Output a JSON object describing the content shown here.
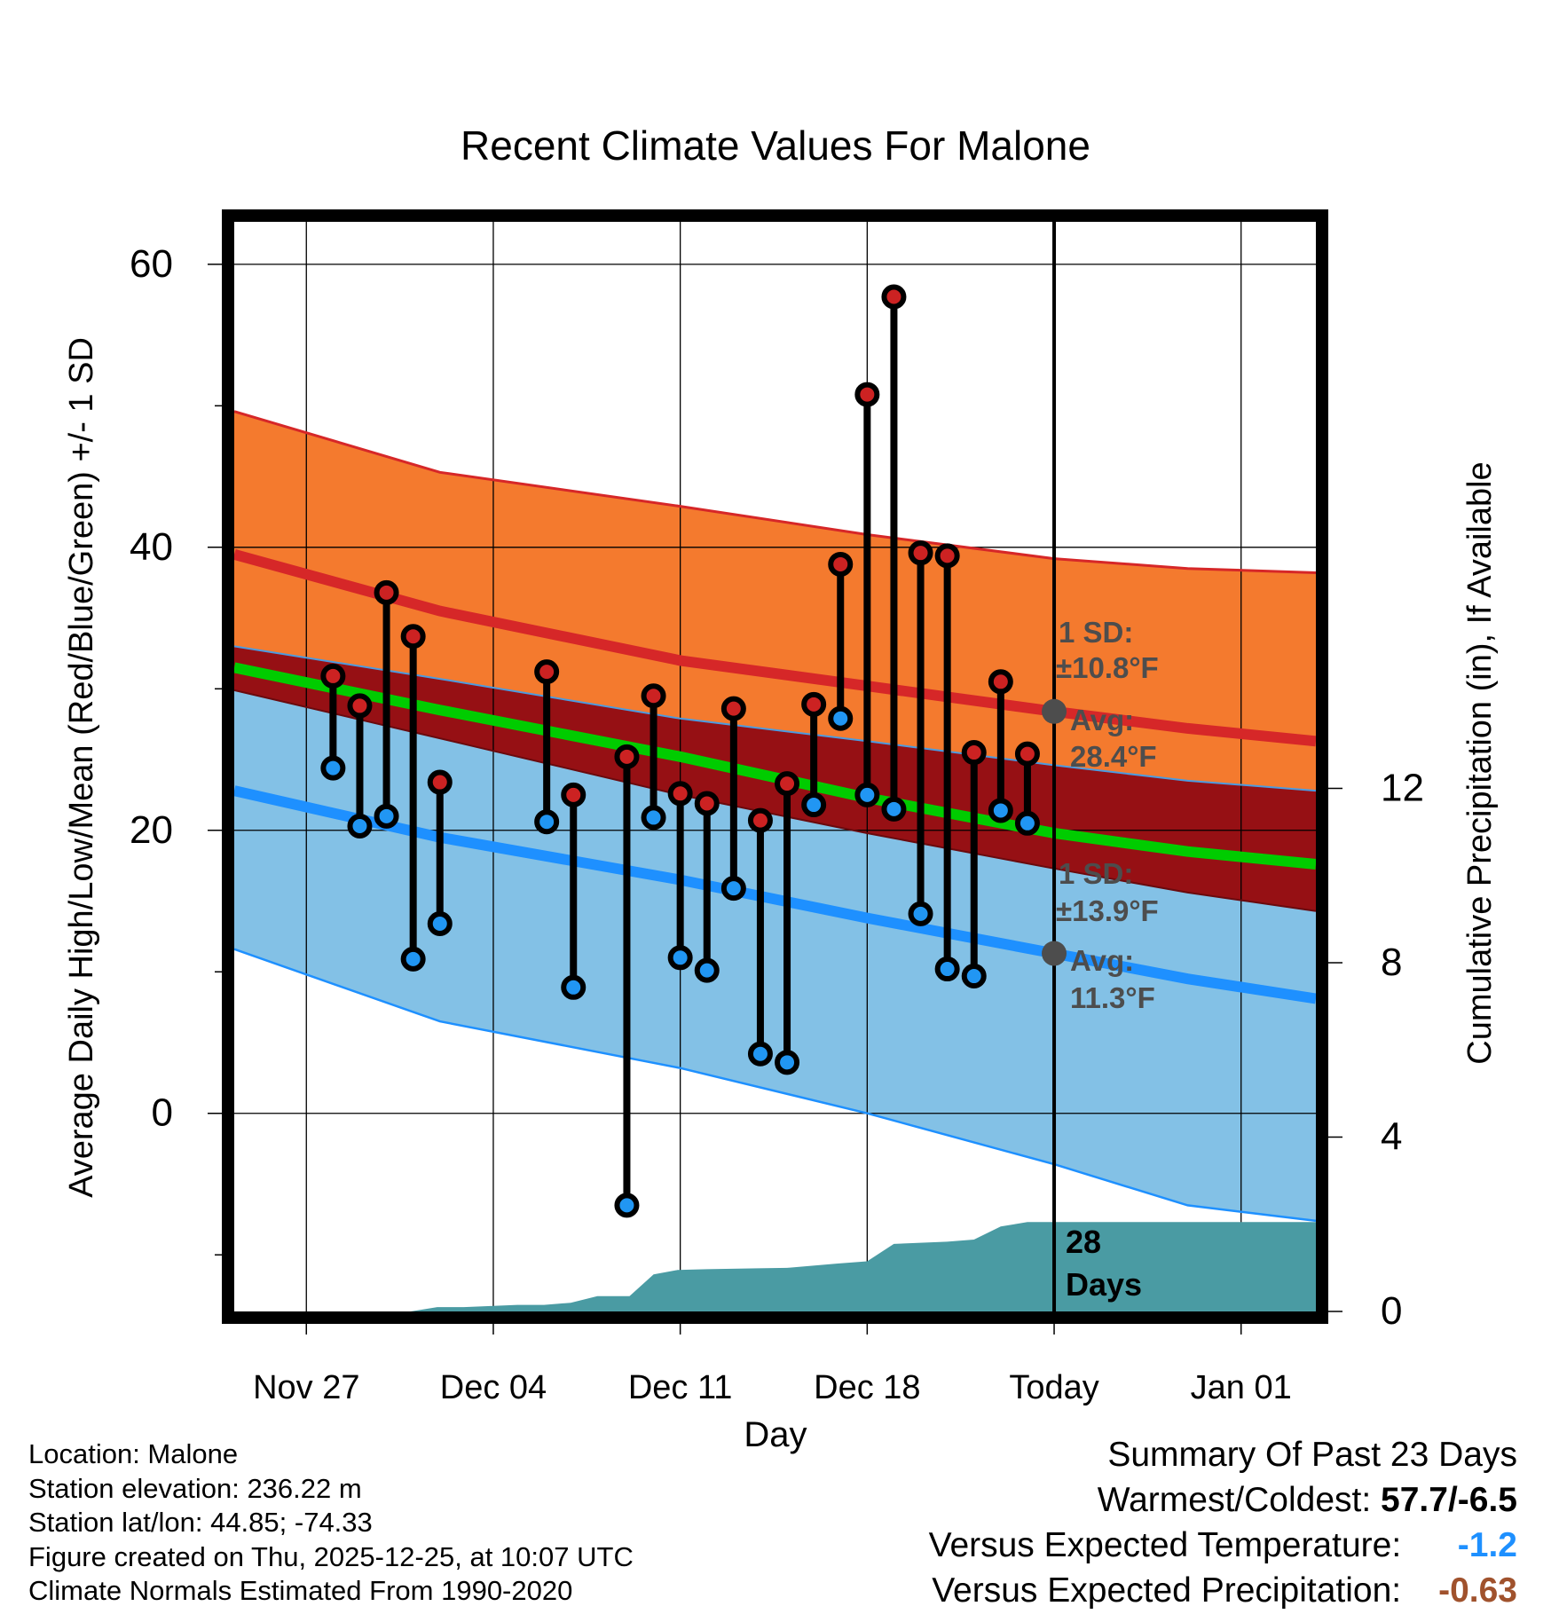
{
  "chart_data": {
    "type": "line",
    "title": "Recent Climate Values For Malone",
    "xlabel": "Day",
    "ylabel": "Average Daily High/Low/Mean (Red/Blue/Green) +/- 1 SD",
    "y2label": "Cumulative Precipitation (in), If Available",
    "x_tick_labels": [
      "Nov 27",
      "Dec 04",
      "Dec 11",
      "Dec 18",
      "Today",
      "Jan 01"
    ],
    "x_tick_days": [
      0,
      7,
      14,
      21,
      28,
      35
    ],
    "xlim": [
      -2.7,
      37.8
    ],
    "y_ticks": [
      0,
      20,
      40,
      60
    ],
    "ylim": [
      -14,
      63
    ],
    "y2_ticks": [
      0,
      4,
      8,
      12
    ],
    "y2lim": [
      0,
      25
    ],
    "normals": {
      "days": [
        -2.7,
        5,
        14,
        21,
        28,
        33,
        37.8
      ],
      "high_avg": [
        39.5,
        35.5,
        32,
        30.2,
        28.4,
        27.2,
        26.3
      ],
      "high_upper": [
        49.6,
        45.3,
        42.9,
        40.9,
        39.2,
        38.5,
        38.2
      ],
      "high_lower": [
        33.0,
        30.7,
        27.9,
        26.3,
        24.6,
        23.5,
        22.8
      ],
      "mean_avg": [
        31.5,
        28.5,
        25.2,
        22.3,
        19.8,
        18.5,
        17.6
      ],
      "low_avg": [
        22.8,
        19.5,
        16.5,
        13.8,
        11.3,
        9.5,
        8.1
      ],
      "low_upper": [
        29.9,
        26.5,
        22.5,
        19.8,
        17.3,
        15.6,
        14.3
      ],
      "low_lower": [
        11.6,
        6.5,
        3.2,
        0.0,
        -3.6,
        -6.5,
        -7.6
      ]
    },
    "high_annotation": {
      "sd_label": "1 SD:",
      "sd_value": "±10.8°F",
      "avg_label": "Avg:",
      "avg_value": "28.4°F",
      "avg": 28.4
    },
    "low_annotation": {
      "sd_label": "1 SD:",
      "sd_value": "±13.9°F",
      "avg_label": "Avg:",
      "avg_value": "11.3°F",
      "avg": 11.3
    },
    "observations": {
      "days": [
        1,
        2,
        3,
        4,
        5,
        9,
        10,
        12,
        13,
        14,
        15,
        16,
        17,
        18,
        19,
        20,
        21,
        22,
        23,
        24,
        25,
        26,
        27
      ],
      "high": [
        30.9,
        28.8,
        36.8,
        33.7,
        23.4,
        31.2,
        22.5,
        25.2,
        29.5,
        22.6,
        21.9,
        28.6,
        20.7,
        23.3,
        28.9,
        38.8,
        50.8,
        57.7,
        39.6,
        39.4,
        25.5,
        30.5,
        25.4
      ],
      "low": [
        24.4,
        20.3,
        21.0,
        10.9,
        13.4,
        20.6,
        8.9,
        -6.5,
        20.9,
        11.0,
        10.1,
        15.9,
        4.2,
        3.6,
        21.8,
        27.9,
        22.5,
        21.5,
        14.1,
        10.2,
        9.7,
        21.4,
        20.5
      ]
    },
    "precip": {
      "days": [
        3.9,
        4.9,
        5.9,
        7.9,
        8.9,
        9.9,
        10.9,
        12.1,
        13,
        13.9,
        15,
        16.9,
        18,
        19.9,
        21,
        22,
        24,
        25,
        26,
        27,
        28,
        37.8
      ],
      "values": [
        0,
        0.1,
        0.1,
        0.15,
        0.15,
        0.2,
        0.35,
        0.35,
        0.85,
        0.95,
        0.97,
        0.99,
        1.0,
        1.1,
        1.15,
        1.55,
        1.6,
        1.65,
        1.95,
        2.05,
        2.05,
        2.05
      ]
    },
    "today_day": 28,
    "days_label": "28 Days"
  },
  "footer": {
    "location": "Location: Malone",
    "elevation": "Station elevation: 236.22 m",
    "latlon": "Station lat/lon: 44.85; -74.33",
    "created": "Figure created on Thu, 2025-12-25, at 10:07 UTC",
    "normals": "Climate Normals Estimated From 1990-2020"
  },
  "summary": {
    "title": "Summary Of Past 23 Days",
    "warmest_label": "Warmest/Coldest:",
    "warmest_value": "57.7/-6.5",
    "temp_label": "Versus Expected Temperature:",
    "temp_value": "-1.2",
    "precip_label": "Versus Expected Precipitation:",
    "precip_value": "-0.63"
  },
  "colors": {
    "high_band": "#f47a2e",
    "high_line": "#d62728",
    "overlap_band": "#961014",
    "low_band": "#83c1e6",
    "low_line": "#1e90ff",
    "mean_line": "#00cc00",
    "precip_fill": "#4a9ba3",
    "annotation": "#4d4d4d",
    "high_dot": "#cc2222",
    "low_dot": "#2196f3"
  }
}
